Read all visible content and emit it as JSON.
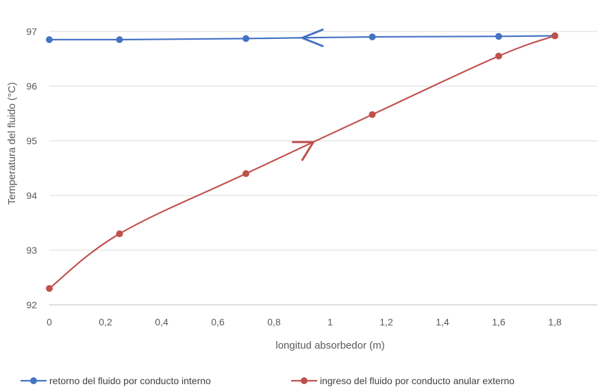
{
  "chart_data": {
    "type": "line",
    "title": "",
    "xlabel": "longitud absorbedor (m)",
    "ylabel": "Temperatura del fluido (°C)",
    "xlim": [
      0,
      1.95
    ],
    "ylim": [
      92,
      97.4
    ],
    "xticks": [
      0,
      0.2,
      0.4,
      0.6,
      0.8,
      1,
      1.2,
      1.4,
      1.6,
      1.8
    ],
    "xtick_labels": [
      "0",
      "0,2",
      "0,4",
      "0,6",
      "0,8",
      "1",
      "1,2",
      "1,4",
      "1,6",
      "1,8"
    ],
    "yticks": [
      92,
      93,
      94,
      95,
      96,
      97
    ],
    "ytick_labels": [
      "92",
      "93",
      "94",
      "95",
      "96",
      "97"
    ],
    "grid": "horizontal",
    "legend_position": "bottom",
    "series": [
      {
        "name": "retorno del fluido por conducto interno",
        "color": "#4472c4",
        "x": [
          0,
          0.25,
          0.7,
          1.15,
          1.6,
          1.8
        ],
        "y": [
          96.85,
          96.85,
          96.87,
          96.9,
          96.91,
          96.92
        ],
        "arrow": {
          "x": 0.9,
          "direction": "left"
        }
      },
      {
        "name": "ingreso del fluido por conducto anular externo",
        "color": "#c0504d",
        "x": [
          0,
          0.25,
          0.7,
          1.15,
          1.6,
          1.8
        ],
        "y": [
          92.3,
          93.3,
          94.4,
          95.48,
          96.55,
          96.92
        ],
        "arrow": {
          "x": 0.94,
          "direction": "right"
        }
      }
    ]
  }
}
